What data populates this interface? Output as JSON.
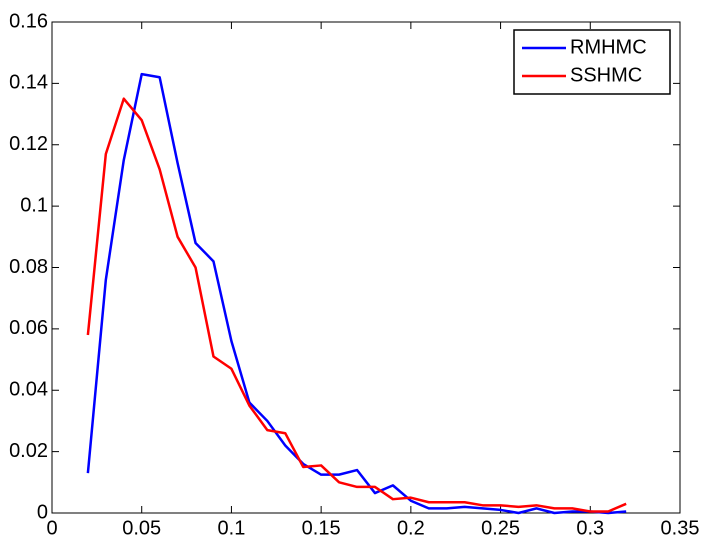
{
  "chart_data": {
    "type": "line",
    "x": [
      0.02,
      0.03,
      0.04,
      0.05,
      0.06,
      0.07,
      0.08,
      0.09,
      0.1,
      0.11,
      0.12,
      0.13,
      0.14,
      0.15,
      0.16,
      0.17,
      0.18,
      0.19,
      0.2,
      0.21,
      0.22,
      0.23,
      0.24,
      0.25,
      0.26,
      0.27,
      0.28,
      0.29,
      0.3,
      0.31,
      0.32
    ],
    "series": [
      {
        "name": "RMHMC",
        "color": "#0000ff",
        "values": [
          0.013,
          0.076,
          0.115,
          0.143,
          0.142,
          0.114,
          0.088,
          0.082,
          0.056,
          0.036,
          0.03,
          0.022,
          0.016,
          0.0125,
          0.0125,
          0.014,
          0.0065,
          0.009,
          0.004,
          0.0015,
          0.0015,
          0.002,
          0.0015,
          0.001,
          0,
          0.0015,
          0,
          0.0005,
          0.0005,
          0,
          0.0005
        ]
      },
      {
        "name": "SSHMC",
        "color": "#ff0000",
        "values": [
          0.058,
          0.117,
          0.135,
          0.128,
          0.112,
          0.09,
          0.08,
          0.051,
          0.047,
          0.035,
          0.027,
          0.026,
          0.015,
          0.0155,
          0.01,
          0.0085,
          0.0085,
          0.0045,
          0.005,
          0.0035,
          0.0035,
          0.0035,
          0.0025,
          0.0025,
          0.002,
          0.0025,
          0.0015,
          0.0015,
          0.0005,
          0.0005,
          0.003
        ]
      }
    ],
    "xlim": [
      0,
      0.35
    ],
    "xticks": [
      0,
      0.05,
      0.1,
      0.15,
      0.2,
      0.25,
      0.3,
      0.35
    ],
    "ylim": [
      0,
      0.16
    ],
    "yticks": [
      0,
      0.02,
      0.04,
      0.06,
      0.08,
      0.1,
      0.12,
      0.14,
      0.16
    ],
    "grid": false,
    "legend": "northeast"
  }
}
